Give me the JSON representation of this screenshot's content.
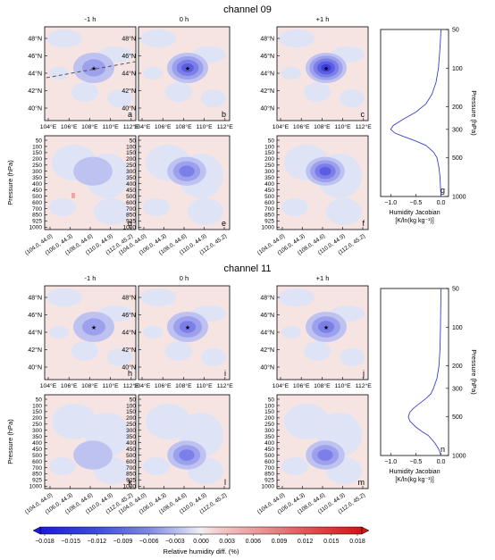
{
  "chart_data": {
    "type": "heatmap",
    "sections": [
      {
        "title": "channel 09",
        "time_labels": [
          "-1 h",
          "0 h",
          "+1 h"
        ],
        "map_panel_letters": [
          "a",
          "b",
          "c"
        ],
        "profile_panel_letters": [
          "d",
          "e",
          "f"
        ],
        "jacobian_letter": "g",
        "map_peak": [
          -0.006,
          -0.012,
          -0.015
        ],
        "profile_peak": [
          -0.004,
          -0.009,
          -0.012
        ],
        "profile_center_hpa": 300,
        "jacobian_profile": {
          "pressure_hpa": [
            50,
            70,
            100,
            130,
            160,
            190,
            220,
            250,
            280,
            300,
            320,
            340,
            370,
            400,
            450,
            500,
            600,
            700,
            850,
            1000
          ],
          "jacobian": [
            0.0,
            -0.02,
            -0.05,
            -0.1,
            -0.18,
            -0.3,
            -0.5,
            -0.75,
            -0.95,
            -1.0,
            -0.92,
            -0.75,
            -0.5,
            -0.3,
            -0.15,
            -0.08,
            -0.04,
            -0.02,
            -0.01,
            0.0
          ]
        }
      },
      {
        "title": "channel 11",
        "time_labels": [
          "-1 h",
          "0 h",
          "+1 h"
        ],
        "map_panel_letters": [
          "h",
          "i",
          "j"
        ],
        "profile_panel_letters": [
          "k",
          "l",
          "m"
        ],
        "jacobian_letter": "n",
        "map_peak": [
          -0.005,
          -0.008,
          -0.009
        ],
        "profile_peak": [
          -0.004,
          -0.008,
          -0.008
        ],
        "profile_center_hpa": 500,
        "jacobian_profile": {
          "pressure_hpa": [
            50,
            100,
            150,
            200,
            250,
            300,
            330,
            360,
            400,
            430,
            460,
            500,
            540,
            600,
            650,
            700,
            800,
            900,
            1000
          ],
          "jacobian": [
            0.0,
            -0.01,
            -0.02,
            -0.04,
            -0.08,
            -0.15,
            -0.2,
            -0.3,
            -0.45,
            -0.55,
            -0.62,
            -0.65,
            -0.62,
            -0.5,
            -0.38,
            -0.25,
            -0.12,
            -0.04,
            0.0
          ]
        }
      }
    ],
    "map_yticks": [
      "48°N",
      "46°N",
      "44°N",
      "42°N",
      "40°N"
    ],
    "map_xticks": [
      "104°E",
      "106°E",
      "108°E",
      "110°E",
      "112°E"
    ],
    "profile_yticks": [
      "50",
      "100",
      "150",
      "200",
      "250",
      "300",
      "350",
      "400",
      "450",
      "500",
      "600",
      "700",
      "850",
      "925",
      "1000"
    ],
    "profile_ylabel": "Pressure (hPa)",
    "profile_xticks": [
      "(104.0, 44.0)",
      "(106.0, 44.3)",
      "(108.0, 44.6)",
      "(110.0, 44.9)",
      "(112.0, 45.2)"
    ],
    "jacobian_yticks": [
      50,
      100,
      200,
      300,
      500,
      1000
    ],
    "jacobian_xticks": [
      "−1.0",
      "−0.5",
      "0.0"
    ],
    "jacobian_xlim": [
      -1.2,
      0.15
    ],
    "jacobian_xlabel": [
      "Humidity Jacobian",
      "[K/ln(kg kg⁻¹)]"
    ],
    "jacobian_ylabel": "Pressure (hPa)",
    "colorbar": {
      "ticks": [
        "−0.018",
        "−0.015",
        "−0.012",
        "−0.009",
        "−0.006",
        "−0.003",
        "0.000",
        "0.003",
        "0.006",
        "0.009",
        "0.012",
        "0.015",
        "0.018"
      ],
      "range": [
        -0.018,
        0.018
      ],
      "label": "Relative humidity diff. (%)"
    },
    "colors": {
      "background_pink": "#f6e4e3",
      "pale_blue": "#dee3f6",
      "line_blue": "#3a43c9"
    }
  }
}
